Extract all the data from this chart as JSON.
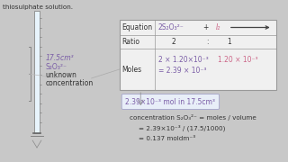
{
  "bg_color": "#c8c8c8",
  "left_text_color": "#7b5ea7",
  "table_bg": "#f0f0f0",
  "table_border": "#999999",
  "arrow_color": "#444444",
  "highlight_box_border": "#aaaacc",
  "highlight_box_bg": "#e8eef8",
  "highlight_text_color": "#7b5ea7",
  "main_text_color": "#333333",
  "pink_color": "#cc6688",
  "top_left_text": "thiosulphate solution.",
  "left_annotation_line1": "17.5cm³",
  "left_annotation_line2": "S₂O₃²⁻",
  "left_annotation_line3": "unknown",
  "left_annotation_line4": "concentration",
  "equation_label": "Equation",
  "ratio_label": "Ratio",
  "moles_label": "Moles",
  "eq_thio": "2S₂O₃²⁻",
  "eq_plus": "+",
  "eq_iodine": "I₂",
  "ratio_thio": "2",
  "ratio_colon": ":",
  "ratio_iodine": "1",
  "moles_thio_line1": "2 × 1.20×10⁻³",
  "moles_thio_line2": "= 2.39 × 10⁻³",
  "moles_iodine": "1.20 × 10⁻³",
  "highlight_box_text": "2.39×10⁻³ mol in 17.5cm³",
  "conc_line1": "concentration S₂O₃²⁻ = moles / volume",
  "conc_line2": "= 2.39×10⁻³ / (17.5/1000)",
  "conc_line3": "= 0.137 moldm⁻³"
}
